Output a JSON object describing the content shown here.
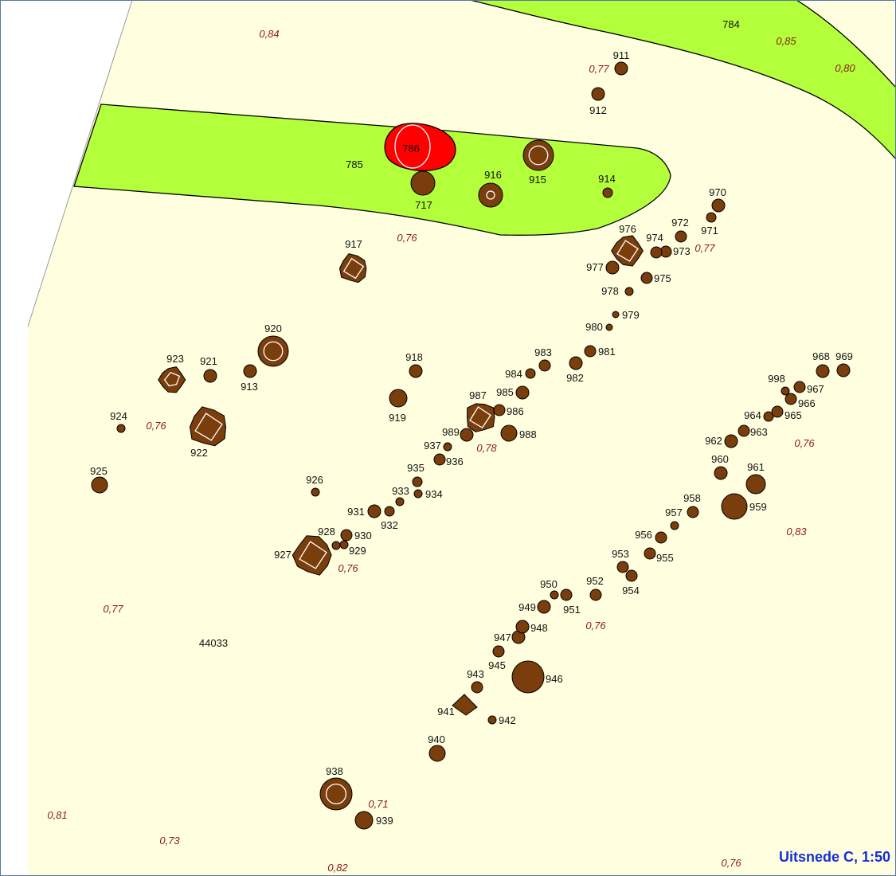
{
  "title": "Uitsnede C, 1:50",
  "site_label": "44033",
  "colors": {
    "background": "#ffffe0",
    "green_zone": "#b4ff3c",
    "feature_fill": "#7a3d0c",
    "highlight_fill": "#ff0000",
    "elevation_text": "#8b1a1a",
    "title_text": "#1530d8"
  },
  "zones": [
    {
      "id": "784",
      "label": "784"
    },
    {
      "id": "785",
      "label": "785"
    }
  ],
  "highlighted_feature": "786",
  "features": [
    "717",
    "786",
    "911",
    "912",
    "913",
    "914",
    "915",
    "916",
    "917",
    "918",
    "919",
    "920",
    "921",
    "922",
    "923",
    "924",
    "925",
    "926",
    "927",
    "928",
    "929",
    "930",
    "931",
    "932",
    "933",
    "934",
    "935",
    "936",
    "937",
    "938",
    "939",
    "940",
    "941",
    "942",
    "943",
    "945",
    "946",
    "947",
    "948",
    "949",
    "950",
    "951",
    "952",
    "953",
    "954",
    "955",
    "956",
    "957",
    "958",
    "959",
    "960",
    "961",
    "962",
    "963",
    "964",
    "965",
    "966",
    "967",
    "968",
    "969",
    "970",
    "971",
    "972",
    "973",
    "974",
    "975",
    "976",
    "977",
    "978",
    "979",
    "980",
    "981",
    "982",
    "983",
    "984",
    "985",
    "986",
    "987",
    "988",
    "989",
    "998"
  ],
  "elevations": [
    "0,84",
    "0,85",
    "0,80",
    "0,77",
    "0,76",
    "0,77",
    "0,78",
    "0,76",
    "0,76",
    "0,83",
    "0,76",
    "0,77",
    "0,71",
    "0,81",
    "0,73",
    "0,82",
    "0,76",
    "0,76"
  ]
}
